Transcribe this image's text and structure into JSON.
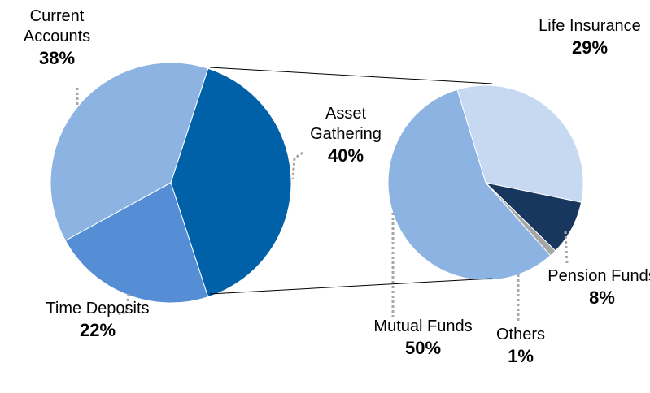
{
  "chart_data": [
    {
      "type": "pie",
      "categories": [
        "Asset Gathering",
        "Time Deposits",
        "Current Accounts"
      ],
      "values": [
        40,
        22,
        38
      ],
      "value_labels": [
        "40%",
        "22%",
        "38%"
      ],
      "colors": [
        "#0060a8",
        "#558ed5",
        "#8db3e2"
      ]
    },
    {
      "type": "pie",
      "categories": [
        "Life Insurance",
        "Pension Funds",
        "Others",
        "Mutual Funds"
      ],
      "values": [
        29,
        8,
        1,
        50
      ],
      "value_labels": [
        "29%",
        "8%",
        "1%",
        "50%"
      ],
      "colors": [
        "#c6d9f1",
        "#17375e",
        "#a6a6a6",
        "#8db3e2"
      ]
    }
  ]
}
